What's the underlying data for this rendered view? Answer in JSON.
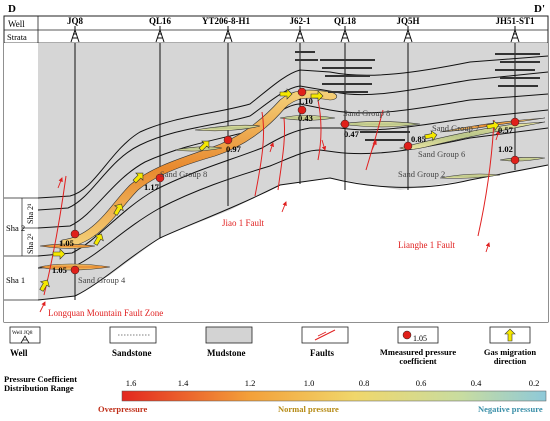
{
  "section": {
    "left_end": "D",
    "right_end": "D'"
  },
  "header": {
    "well_label": "Well",
    "strata_label": "Strata"
  },
  "wells": [
    "JQ8",
    "QL16",
    "YT206-8-H1",
    "J62-1",
    "QL18",
    "JQ5H",
    "JH51-ST1"
  ],
  "strata": [
    "Sha 2",
    "Sha 2¹",
    "Sha 2²",
    "Sha 1"
  ],
  "sand_groups": [
    "Sand Group 4",
    "Sand Group 8",
    "Sand Group 8",
    "Sand Group 7",
    "Sand Group 6",
    "Sand Group 2"
  ],
  "pressure_points": [
    "1.05",
    "1.05",
    "1.17",
    "0.97",
    "1.10",
    "0.43",
    "0.47",
    "0.85",
    "0.57",
    "1.02"
  ],
  "faults": [
    "Jiao 1 Fault",
    "Lianghe 1 Fault",
    "Longquan Mountain Fault Zone"
  ],
  "legend": {
    "well_icon_label": "Well JQ8",
    "items": [
      "Well",
      "Sandstone",
      "Mudstone",
      "Faults",
      "Mmeasured pressure coefficient",
      "Gas migration direction"
    ],
    "sample_value": "1.05"
  },
  "scale": {
    "title": "Pressure Coefficient Distribution Range",
    "ticks": [
      "1.6",
      "1.4",
      "1.2",
      "1.0",
      "0.8",
      "0.6",
      "0.4",
      "0.2"
    ],
    "labels": [
      "Overpressure",
      "Normal pressure",
      "Negative pressure"
    ]
  },
  "colors": {
    "mudstone": "#d3d3d3",
    "fault": "#e02020",
    "measured_point": "#e0201a",
    "gas_arrow": "#f5e800",
    "overpressure": "#e3271f",
    "normal_pressure": "#f0d76b",
    "negative_pressure": "#8ec9d9"
  }
}
